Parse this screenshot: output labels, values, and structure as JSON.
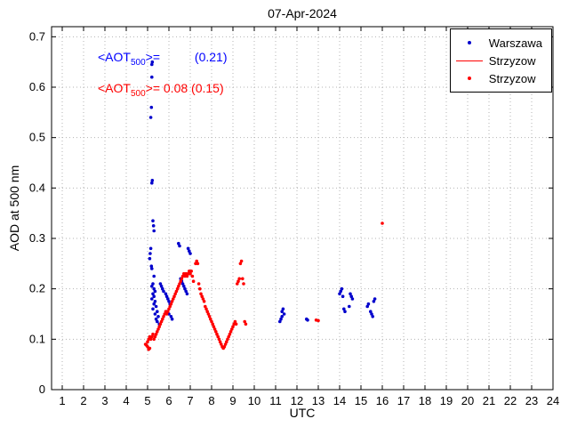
{
  "title": "07-Apr-2024",
  "annotations": {
    "blue": {
      "pre": "<AOT",
      "sub": "500",
      "post": ">=          (0.21)",
      "color": "#0000ff"
    },
    "red": {
      "pre": "<AOT",
      "sub": "500",
      "post": ">= 0.08 (0.15)",
      "color": "#ff0000"
    }
  },
  "legend": {
    "entries": [
      {
        "label": "Warszawa",
        "marker": "dot",
        "color": "#0000cc"
      },
      {
        "label": "Strzyzow",
        "marker": "line",
        "color": "#ff0000"
      },
      {
        "label": "Strzyzow",
        "marker": "dot",
        "color": "#ff0000"
      }
    ]
  },
  "chart_data": {
    "type": "scatter",
    "title": "07-Apr-2024",
    "xlabel": "UTC",
    "ylabel": "AOD at 500 nm",
    "xlim": [
      0.5,
      24
    ],
    "ylim": [
      0,
      0.72
    ],
    "xticks": [
      1,
      2,
      3,
      4,
      5,
      6,
      7,
      8,
      9,
      10,
      11,
      12,
      13,
      14,
      15,
      16,
      17,
      18,
      19,
      20,
      21,
      22,
      23,
      24
    ],
    "yticks": [
      0,
      0.1,
      0.2,
      0.3,
      0.4,
      0.5,
      0.6,
      0.7
    ],
    "grid": true,
    "legend_position": "top-right",
    "series": [
      {
        "name": "Warszawa",
        "color": "#0000cc",
        "marker": "dot",
        "points": [
          [
            5.1,
            0.26
          ],
          [
            5.12,
            0.27
          ],
          [
            5.15,
            0.28
          ],
          [
            5.15,
            0.54
          ],
          [
            5.18,
            0.56
          ],
          [
            5.2,
            0.62
          ],
          [
            5.2,
            0.645
          ],
          [
            5.22,
            0.65
          ],
          [
            5.2,
            0.41
          ],
          [
            5.22,
            0.415
          ],
          [
            5.25,
            0.335
          ],
          [
            5.28,
            0.325
          ],
          [
            5.3,
            0.315
          ],
          [
            5.18,
            0.245
          ],
          [
            5.2,
            0.24
          ],
          [
            5.3,
            0.225
          ],
          [
            5.25,
            0.21
          ],
          [
            5.2,
            0.205
          ],
          [
            5.3,
            0.2
          ],
          [
            5.35,
            0.195
          ],
          [
            5.25,
            0.19
          ],
          [
            5.3,
            0.185
          ],
          [
            5.2,
            0.18
          ],
          [
            5.35,
            0.175
          ],
          [
            5.3,
            0.17
          ],
          [
            5.4,
            0.165
          ],
          [
            5.25,
            0.16
          ],
          [
            5.45,
            0.155
          ],
          [
            5.35,
            0.15
          ],
          [
            5.5,
            0.145
          ],
          [
            5.4,
            0.14
          ],
          [
            5.45,
            0.135
          ],
          [
            5.55,
            0.13
          ],
          [
            5.6,
            0.21
          ],
          [
            5.65,
            0.205
          ],
          [
            5.7,
            0.2
          ],
          [
            5.75,
            0.195
          ],
          [
            5.85,
            0.19
          ],
          [
            5.9,
            0.185
          ],
          [
            5.95,
            0.18
          ],
          [
            6.0,
            0.175
          ],
          [
            6.05,
            0.17
          ],
          [
            5.9,
            0.155
          ],
          [
            6.0,
            0.15
          ],
          [
            6.1,
            0.145
          ],
          [
            6.15,
            0.14
          ],
          [
            6.45,
            0.29
          ],
          [
            6.5,
            0.285
          ],
          [
            6.9,
            0.28
          ],
          [
            6.95,
            0.275
          ],
          [
            7.0,
            0.27
          ],
          [
            6.55,
            0.22
          ],
          [
            6.6,
            0.215
          ],
          [
            6.65,
            0.21
          ],
          [
            6.7,
            0.205
          ],
          [
            6.75,
            0.2
          ],
          [
            6.8,
            0.195
          ],
          [
            6.85,
            0.19
          ],
          [
            11.2,
            0.135
          ],
          [
            11.25,
            0.14
          ],
          [
            11.3,
            0.145
          ],
          [
            11.3,
            0.155
          ],
          [
            11.35,
            0.16
          ],
          [
            11.4,
            0.15
          ],
          [
            12.45,
            0.14
          ],
          [
            12.5,
            0.138
          ],
          [
            14.0,
            0.19
          ],
          [
            14.05,
            0.195
          ],
          [
            14.1,
            0.2
          ],
          [
            14.15,
            0.185
          ],
          [
            14.2,
            0.16
          ],
          [
            14.25,
            0.155
          ],
          [
            14.45,
            0.165
          ],
          [
            14.5,
            0.19
          ],
          [
            14.55,
            0.185
          ],
          [
            14.6,
            0.18
          ],
          [
            15.3,
            0.165
          ],
          [
            15.35,
            0.17
          ],
          [
            15.45,
            0.155
          ],
          [
            15.5,
            0.15
          ],
          [
            15.55,
            0.145
          ],
          [
            15.6,
            0.175
          ],
          [
            15.65,
            0.18
          ]
        ]
      },
      {
        "name": "Strzyzow",
        "color": "#ff0000",
        "marker": "dot",
        "points": [
          [
            4.9,
            0.09
          ],
          [
            4.95,
            0.088
          ],
          [
            5.0,
            0.085
          ],
          [
            5.05,
            0.08
          ],
          [
            5.1,
            0.082
          ],
          [
            5.0,
            0.095
          ],
          [
            5.05,
            0.1
          ],
          [
            5.1,
            0.105
          ],
          [
            5.15,
            0.1
          ],
          [
            5.2,
            0.105
          ],
          [
            5.25,
            0.11
          ],
          [
            5.3,
            0.1
          ],
          [
            5.35,
            0.105
          ],
          [
            5.4,
            0.11
          ],
          [
            5.45,
            0.115
          ],
          [
            5.5,
            0.12
          ],
          [
            5.55,
            0.125
          ],
          [
            5.6,
            0.13
          ],
          [
            5.65,
            0.135
          ],
          [
            5.7,
            0.14
          ],
          [
            5.75,
            0.145
          ],
          [
            5.8,
            0.15
          ],
          [
            5.85,
            0.155
          ],
          [
            5.9,
            0.15
          ],
          [
            5.95,
            0.155
          ],
          [
            6.0,
            0.16
          ],
          [
            6.05,
            0.165
          ],
          [
            6.1,
            0.17
          ],
          [
            6.15,
            0.175
          ],
          [
            6.2,
            0.18
          ],
          [
            6.25,
            0.185
          ],
          [
            6.3,
            0.19
          ],
          [
            6.35,
            0.195
          ],
          [
            6.4,
            0.2
          ],
          [
            6.45,
            0.205
          ],
          [
            6.5,
            0.21
          ],
          [
            6.55,
            0.215
          ],
          [
            6.6,
            0.22
          ],
          [
            6.65,
            0.225
          ],
          [
            6.7,
            0.23
          ],
          [
            6.75,
            0.225
          ],
          [
            6.8,
            0.23
          ],
          [
            6.85,
            0.225
          ],
          [
            6.9,
            0.23
          ],
          [
            6.95,
            0.235
          ],
          [
            7.0,
            0.23
          ],
          [
            7.05,
            0.235
          ],
          [
            7.1,
            0.225
          ],
          [
            7.15,
            0.215
          ],
          [
            7.25,
            0.25
          ],
          [
            7.3,
            0.255
          ],
          [
            7.35,
            0.25
          ],
          [
            7.4,
            0.21
          ],
          [
            7.45,
            0.2
          ],
          [
            7.5,
            0.19
          ],
          [
            7.55,
            0.185
          ],
          [
            7.6,
            0.18
          ],
          [
            7.65,
            0.175
          ],
          [
            7.7,
            0.165
          ],
          [
            7.75,
            0.16
          ],
          [
            7.8,
            0.155
          ],
          [
            7.85,
            0.15
          ],
          [
            7.9,
            0.145
          ],
          [
            7.95,
            0.14
          ],
          [
            8.0,
            0.135
          ],
          [
            8.05,
            0.13
          ],
          [
            8.1,
            0.125
          ],
          [
            8.15,
            0.12
          ],
          [
            8.2,
            0.115
          ],
          [
            8.25,
            0.11
          ],
          [
            8.3,
            0.105
          ],
          [
            8.35,
            0.1
          ],
          [
            8.4,
            0.095
          ],
          [
            8.45,
            0.09
          ],
          [
            8.5,
            0.085
          ],
          [
            8.55,
            0.082
          ],
          [
            8.6,
            0.085
          ],
          [
            8.65,
            0.09
          ],
          [
            8.7,
            0.095
          ],
          [
            8.75,
            0.1
          ],
          [
            8.8,
            0.105
          ],
          [
            8.85,
            0.11
          ],
          [
            8.9,
            0.115
          ],
          [
            8.95,
            0.12
          ],
          [
            9.0,
            0.125
          ],
          [
            9.05,
            0.13
          ],
          [
            9.1,
            0.135
          ],
          [
            9.15,
            0.13
          ],
          [
            9.2,
            0.21
          ],
          [
            9.25,
            0.215
          ],
          [
            9.3,
            0.22
          ],
          [
            9.35,
            0.25
          ],
          [
            9.4,
            0.255
          ],
          [
            9.45,
            0.22
          ],
          [
            9.5,
            0.21
          ],
          [
            9.55,
            0.135
          ],
          [
            9.6,
            0.13
          ],
          [
            12.9,
            0.138
          ],
          [
            13.0,
            0.137
          ],
          [
            16.0,
            0.33
          ]
        ]
      }
    ]
  }
}
